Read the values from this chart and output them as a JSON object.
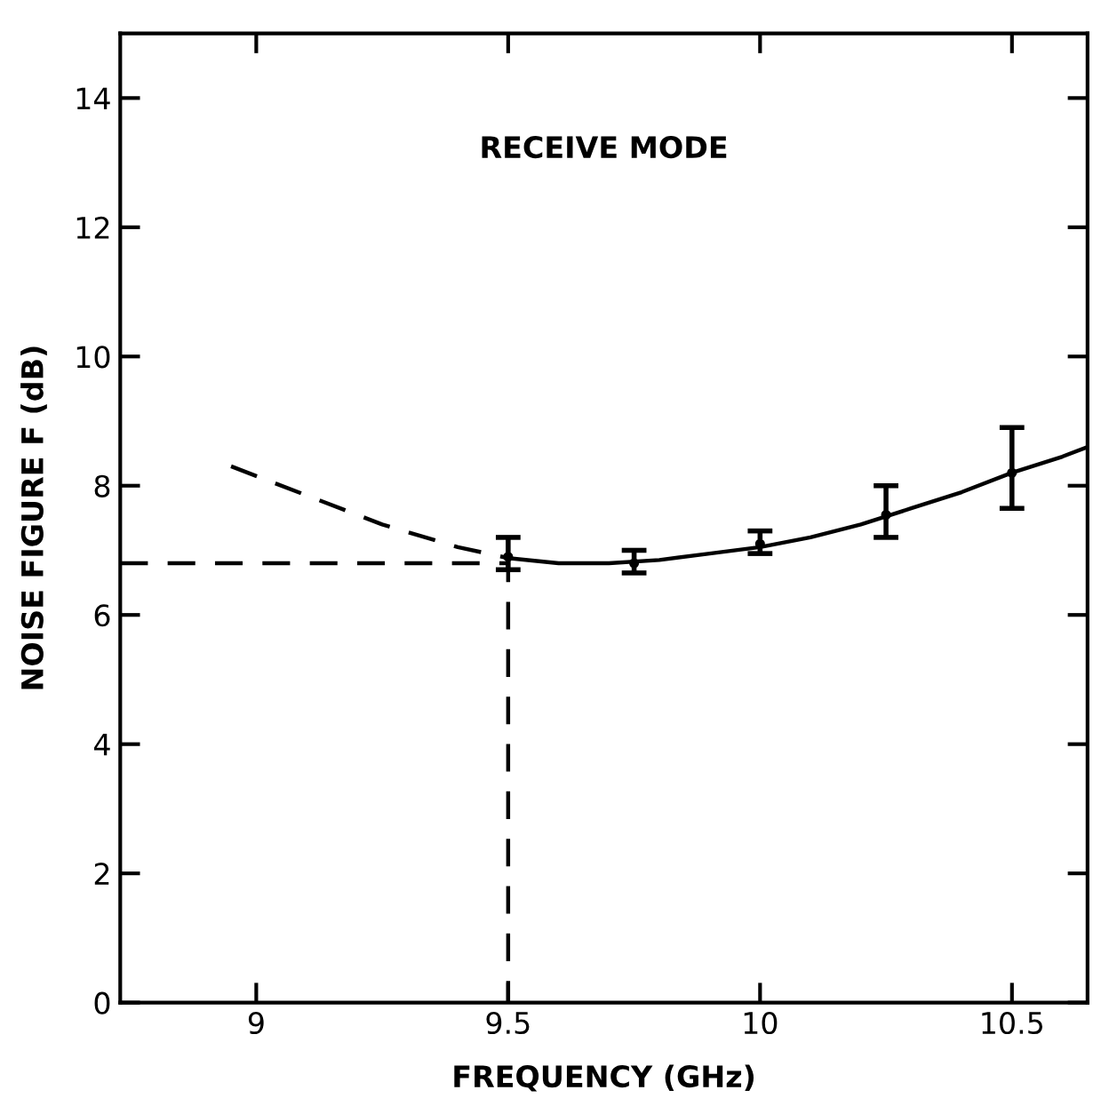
{
  "chart_data": {
    "type": "line",
    "xlabel": "FREQUENCY (GHz)",
    "ylabel": "NOISE FIGURE F (dB)",
    "annotations": [
      "RECEIVE MODE"
    ],
    "xlim": [
      8.73,
      10.65
    ],
    "ylim": [
      0,
      15
    ],
    "xticks": [
      9,
      9.5,
      10,
      10.5
    ],
    "yticks": [
      0,
      2,
      4,
      6,
      8,
      10,
      12,
      14
    ],
    "grid": false,
    "legend": false,
    "series": [
      {
        "line_style": "dashed",
        "color": "#000000",
        "x": [
          8.95,
          9.1,
          9.25,
          9.4,
          9.5
        ],
        "values": [
          8.3,
          7.85,
          7.4,
          7.05,
          6.88
        ]
      },
      {
        "line_style": "solid",
        "color": "#000000",
        "x": [
          9.5,
          9.6,
          9.7,
          9.8,
          9.9,
          10,
          10.1,
          10.2,
          10.3,
          10.4,
          10.5,
          10.6,
          10.65
        ],
        "values": [
          6.88,
          6.8,
          6.8,
          6.85,
          6.95,
          7.05,
          7.2,
          7.4,
          7.65,
          7.9,
          8.2,
          8.45,
          8.6
        ]
      },
      {
        "line_style": "dashed",
        "color": "#000000",
        "x": [
          8.73,
          9.5,
          9.5
        ],
        "values": [
          6.8,
          6.8,
          0
        ]
      },
      {
        "type": "scatter",
        "marker": "circle",
        "color": "#000000",
        "x": [
          9.5,
          9.75,
          10,
          10.25,
          10.5
        ],
        "values": [
          6.9,
          6.8,
          7.1,
          7.55,
          8.2
        ],
        "errors": [
          [
            6.7,
            7.2
          ],
          [
            6.65,
            7.0
          ],
          [
            6.95,
            7.3
          ],
          [
            7.2,
            8.0
          ],
          [
            7.65,
            8.9
          ]
        ]
      }
    ]
  }
}
